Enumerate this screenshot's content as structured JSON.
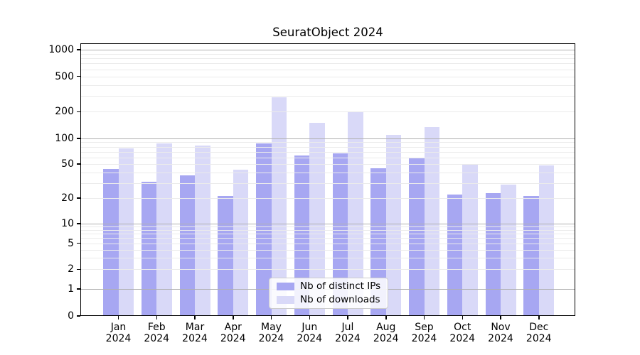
{
  "chart_data": {
    "type": "bar",
    "title": "SeuratObject 2024",
    "categories": [
      "Jan 2024",
      "Feb 2024",
      "Mar 2024",
      "Apr 2024",
      "May 2024",
      "Jun 2024",
      "Jul 2024",
      "Aug 2024",
      "Sep 2024",
      "Oct 2024",
      "Nov 2024",
      "Dec 2024"
    ],
    "series": [
      {
        "name": "Nb of distinct IPs",
        "color": "#a7a7f2",
        "values": [
          44,
          31,
          37,
          21,
          87,
          63,
          67,
          45,
          60,
          22,
          23,
          21
        ]
      },
      {
        "name": "Nb of downloads",
        "color": "#d9d9f8",
        "values": [
          76,
          87,
          83,
          43,
          290,
          150,
          200,
          110,
          135,
          50,
          29,
          48
        ]
      }
    ],
    "xlabel": "",
    "ylabel": "",
    "yscale": "symlog",
    "yticks": [
      0,
      1,
      2,
      5,
      10,
      20,
      50,
      100,
      200,
      500,
      1000
    ],
    "ylim": [
      0,
      1200
    ],
    "grid": "horizontal, minor log gridlines, drawn above bars",
    "legend_position": "lower center"
  },
  "colors": {
    "distinct_ips_bar": "#a7a7f2",
    "downloads_bar": "#d9d9f8",
    "major_gridline": "#b0b0b0",
    "minor_gridline": "#ebebeb",
    "spine": "#000000",
    "background": "#ffffff"
  }
}
